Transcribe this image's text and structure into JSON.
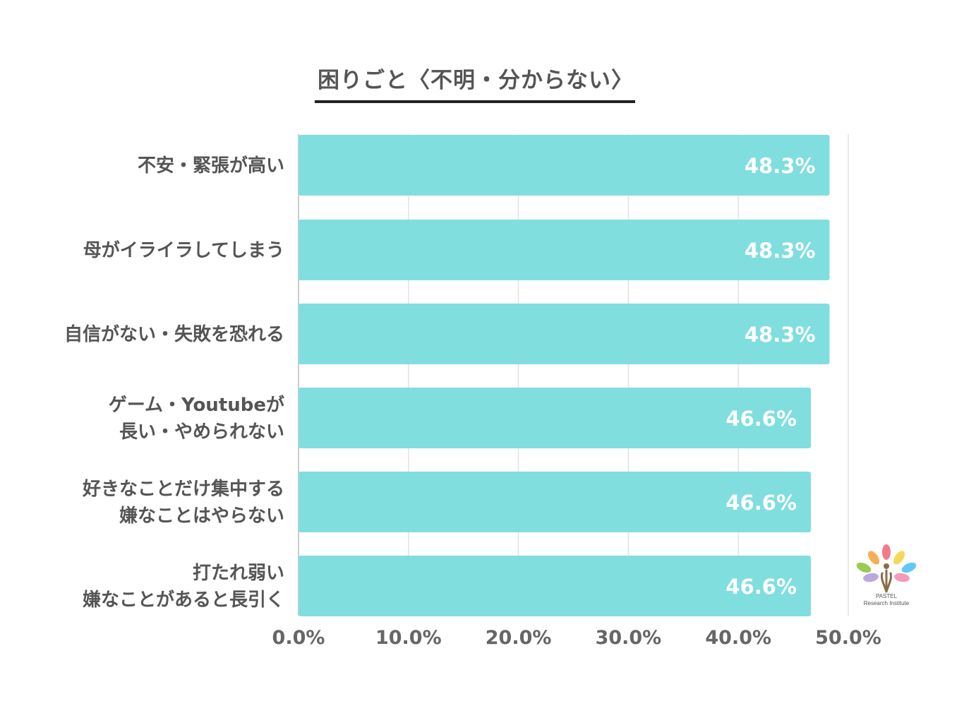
{
  "chart_data": {
    "type": "bar",
    "orientation": "horizontal",
    "title": "困りごと〈不明・分からない〉",
    "categories": [
      [
        "不安・緊張が高い"
      ],
      [
        "母がイライラしてしまう"
      ],
      [
        "自信がない・失敗を恐れる"
      ],
      [
        "ゲーム・Youtubeが",
        "長い・やめられない"
      ],
      [
        "好きなことだけ集中する",
        "嫌なことはやらない"
      ],
      [
        "打たれ弱い",
        "嫌なことがあると長引く"
      ]
    ],
    "values": [
      48.3,
      48.3,
      48.3,
      46.6,
      46.6,
      46.6
    ],
    "value_labels": [
      "48.3%",
      "48.3%",
      "48.3%",
      "46.6%",
      "46.6%",
      "46.6%"
    ],
    "xlim": [
      0,
      50
    ],
    "xticks": [
      0,
      10,
      20,
      30,
      40,
      50
    ],
    "xtick_labels": [
      "0.0%",
      "10.0%",
      "20.0%",
      "30.0%",
      "40.0%",
      "50.0%"
    ],
    "grid": true,
    "bar_color": "#80DEDF",
    "legend": "none"
  },
  "logo": {
    "line1": "PASTEL",
    "line2": "Research Institute",
    "petal_colors": [
      "#F26D7D",
      "#F7A541",
      "#F5D547",
      "#8DC63F",
      "#4FC3F7",
      "#B39DDB",
      "#F48FB1"
    ],
    "stem_color": "#8B6B4A"
  }
}
